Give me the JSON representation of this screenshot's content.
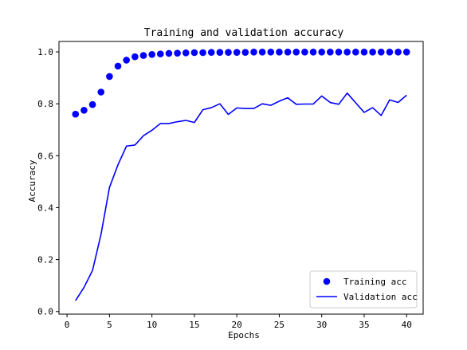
{
  "chart_data": {
    "type": "line",
    "title": "Training and validation accuracy",
    "xlabel": "Epochs",
    "ylabel": "Accuracy",
    "xlim": [
      -0.95,
      41.95
    ],
    "ylim": [
      -0.01,
      1.04
    ],
    "xticks": [
      0,
      5,
      10,
      15,
      20,
      25,
      30,
      35,
      40
    ],
    "yticks": [
      0.0,
      0.2,
      0.4,
      0.6,
      0.8,
      1.0
    ],
    "ytick_labels": [
      "0.0",
      "0.2",
      "0.4",
      "0.6",
      "0.8",
      "1.0"
    ],
    "legend_position": "lower-right",
    "grid": false,
    "x": [
      1,
      2,
      3,
      4,
      5,
      6,
      7,
      8,
      9,
      10,
      11,
      12,
      13,
      14,
      15,
      16,
      17,
      18,
      19,
      20,
      21,
      22,
      23,
      24,
      25,
      26,
      27,
      28,
      29,
      30,
      31,
      32,
      33,
      34,
      35,
      36,
      37,
      38,
      39,
      40
    ],
    "series": [
      {
        "name": "Training acc",
        "style": "points",
        "color": "#0000ff",
        "values": [
          0.76,
          0.775,
          0.797,
          0.845,
          0.905,
          0.945,
          0.968,
          0.981,
          0.986,
          0.99,
          0.992,
          0.994,
          0.995,
          0.996,
          0.997,
          0.997,
          0.998,
          0.998,
          0.998,
          0.998,
          0.998,
          0.999,
          0.999,
          0.999,
          0.999,
          0.999,
          0.999,
          0.999,
          0.999,
          0.999,
          0.999,
          0.999,
          0.999,
          0.999,
          0.999,
          0.999,
          0.999,
          0.999,
          0.999,
          0.999
        ]
      },
      {
        "name": "Validation acc",
        "style": "line",
        "color": "#0000ff",
        "values": [
          0.042,
          0.093,
          0.158,
          0.297,
          0.478,
          0.565,
          0.637,
          0.641,
          0.677,
          0.698,
          0.724,
          0.724,
          0.731,
          0.736,
          0.728,
          0.777,
          0.785,
          0.8,
          0.759,
          0.784,
          0.782,
          0.782,
          0.8,
          0.794,
          0.81,
          0.823,
          0.798,
          0.799,
          0.799,
          0.83,
          0.805,
          0.798,
          0.841,
          0.804,
          0.767,
          0.785,
          0.755,
          0.815,
          0.805,
          0.833
        ]
      }
    ]
  }
}
